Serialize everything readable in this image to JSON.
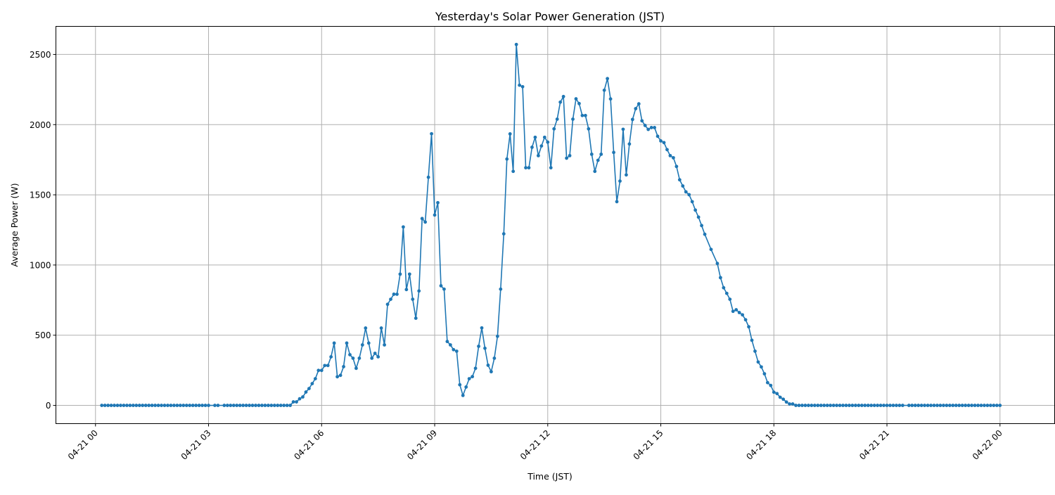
{
  "chart_data": {
    "type": "line",
    "title": "Yesterday's Solar Power Generation (JST)",
    "xlabel": "Time (JST)",
    "ylabel": "Average Power (W)",
    "xlim": [
      "04-20 22:57",
      "04-22 01:27"
    ],
    "ylim": [
      -130,
      2700
    ],
    "grid": true,
    "marker": "circle",
    "colors": {
      "series": "#1f77b4",
      "grid": "#b0b0b0",
      "frame": "#000000"
    },
    "x_ticks": [
      "04-21 00",
      "04-21 03",
      "04-21 06",
      "04-21 09",
      "04-21 12",
      "04-21 15",
      "04-21 18",
      "04-21 21",
      "04-22 00"
    ],
    "y_ticks": [
      0,
      500,
      1000,
      1500,
      2000,
      2500
    ],
    "y_tick_labels": [
      "0",
      "500",
      "1000",
      "1500",
      "2000",
      "2500"
    ],
    "series": [
      {
        "points": [
          [
            "04-21 00:10",
            0
          ],
          [
            "04-21 00:15",
            0
          ],
          [
            "04-21 00:20",
            0
          ],
          [
            "04-21 00:25",
            0
          ],
          [
            "04-21 00:30",
            0
          ],
          [
            "04-21 00:35",
            0
          ],
          [
            "04-21 00:40",
            0
          ],
          [
            "04-21 00:45",
            0
          ],
          [
            "04-21 00:50",
            0
          ],
          [
            "04-21 00:55",
            0
          ],
          [
            "04-21 01:00",
            0
          ],
          [
            "04-21 01:05",
            0
          ],
          [
            "04-21 01:10",
            0
          ],
          [
            "04-21 01:15",
            0
          ],
          [
            "04-21 01:20",
            0
          ],
          [
            "04-21 01:25",
            0
          ],
          [
            "04-21 01:30",
            0
          ],
          [
            "04-21 01:35",
            0
          ],
          [
            "04-21 01:40",
            0
          ],
          [
            "04-21 01:45",
            0
          ],
          [
            "04-21 01:50",
            0
          ],
          [
            "04-21 01:55",
            0
          ],
          [
            "04-21 02:00",
            0
          ],
          [
            "04-21 02:05",
            0
          ],
          [
            "04-21 02:10",
            0
          ],
          [
            "04-21 02:15",
            0
          ],
          [
            "04-21 02:20",
            0
          ],
          [
            "04-21 02:25",
            0
          ],
          [
            "04-21 02:30",
            0
          ],
          [
            "04-21 02:35",
            0
          ],
          [
            "04-21 02:40",
            0
          ],
          [
            "04-21 02:45",
            0
          ],
          [
            "04-21 02:50",
            0
          ],
          [
            "04-21 02:55",
            0
          ],
          [
            "04-21 03:00",
            0
          ],
          [
            "04-21 03:10",
            0
          ],
          [
            "04-21 03:15",
            0
          ],
          [
            "04-21 03:25",
            0
          ],
          [
            "04-21 03:30",
            0
          ],
          [
            "04-21 03:35",
            0
          ],
          [
            "04-21 03:40",
            0
          ],
          [
            "04-21 03:45",
            0
          ],
          [
            "04-21 03:50",
            0
          ],
          [
            "04-21 03:55",
            0
          ],
          [
            "04-21 04:00",
            0
          ],
          [
            "04-21 04:05",
            0
          ],
          [
            "04-21 04:10",
            0
          ],
          [
            "04-21 04:15",
            0
          ],
          [
            "04-21 04:20",
            0
          ],
          [
            "04-21 04:25",
            0
          ],
          [
            "04-21 04:30",
            0
          ],
          [
            "04-21 04:35",
            0
          ],
          [
            "04-21 04:40",
            0
          ],
          [
            "04-21 04:45",
            0
          ],
          [
            "04-21 04:50",
            0
          ],
          [
            "04-21 04:55",
            0
          ],
          [
            "04-21 05:00",
            0
          ],
          [
            "04-21 05:05",
            0
          ],
          [
            "04-21 05:10",
            0
          ],
          [
            "04-21 05:15",
            25
          ],
          [
            "04-21 05:20",
            25
          ],
          [
            "04-21 05:25",
            47
          ],
          [
            "04-21 05:30",
            60
          ],
          [
            "04-21 05:35",
            95
          ],
          [
            "04-21 05:40",
            120
          ],
          [
            "04-21 05:45",
            155
          ],
          [
            "04-21 05:50",
            190
          ],
          [
            "04-21 05:55",
            249
          ],
          [
            "04-21 06:00",
            249
          ],
          [
            "04-21 06:05",
            284
          ],
          [
            "04-21 06:10",
            284
          ],
          [
            "04-21 06:15",
            346
          ],
          [
            "04-21 06:20",
            444
          ],
          [
            "04-21 06:25",
            204
          ],
          [
            "04-21 06:30",
            214
          ],
          [
            "04-21 06:35",
            276
          ],
          [
            "04-21 06:40",
            444
          ],
          [
            "04-21 06:45",
            361
          ],
          [
            "04-21 06:50",
            336
          ],
          [
            "04-21 06:55",
            264
          ],
          [
            "04-21 07:00",
            336
          ],
          [
            "04-21 07:05",
            431
          ],
          [
            "04-21 07:10",
            551
          ],
          [
            "04-21 07:15",
            444
          ],
          [
            "04-21 07:20",
            336
          ],
          [
            "04-21 07:25",
            371
          ],
          [
            "04-21 07:30",
            346
          ],
          [
            "04-21 07:35",
            551
          ],
          [
            "04-21 07:40",
            431
          ],
          [
            "04-21 07:45",
            720
          ],
          [
            "04-21 07:50",
            756
          ],
          [
            "04-21 07:55",
            792
          ],
          [
            "04-21 08:00",
            792
          ],
          [
            "04-21 08:05",
            935
          ],
          [
            "04-21 08:10",
            1271
          ],
          [
            "04-21 08:15",
            825
          ],
          [
            "04-21 08:20",
            935
          ],
          [
            "04-21 08:25",
            756
          ],
          [
            "04-21 08:30",
            621
          ],
          [
            "04-21 08:35",
            815
          ],
          [
            "04-21 08:40",
            1331
          ],
          [
            "04-21 08:45",
            1306
          ],
          [
            "04-21 08:50",
            1625
          ],
          [
            "04-21 08:55",
            1935
          ],
          [
            "04-21 09:00",
            1356
          ],
          [
            "04-21 09:05",
            1444
          ],
          [
            "04-21 09:10",
            852
          ],
          [
            "04-21 09:15",
            828
          ],
          [
            "04-21 09:20",
            455
          ],
          [
            "04-21 09:25",
            431
          ],
          [
            "04-21 09:30",
            397
          ],
          [
            "04-21 09:35",
            386
          ],
          [
            "04-21 09:40",
            147
          ],
          [
            "04-21 09:45",
            71
          ],
          [
            "04-21 09:50",
            131
          ],
          [
            "04-21 09:55",
            190
          ],
          [
            "04-21 10:00",
            205
          ],
          [
            "04-21 10:05",
            264
          ],
          [
            "04-21 10:10",
            421
          ],
          [
            "04-21 10:15",
            552
          ],
          [
            "04-21 10:20",
            407
          ],
          [
            "04-21 10:25",
            286
          ],
          [
            "04-21 10:30",
            240
          ],
          [
            "04-21 10:35",
            336
          ],
          [
            "04-21 10:40",
            492
          ],
          [
            "04-21 10:45",
            828
          ],
          [
            "04-21 10:50",
            1222
          ],
          [
            "04-21 10:55",
            1755
          ],
          [
            "04-21 11:00",
            1934
          ],
          [
            "04-21 11:05",
            1667
          ],
          [
            "04-21 11:10",
            2571
          ],
          [
            "04-21 11:15",
            2281
          ],
          [
            "04-21 11:20",
            2270
          ],
          [
            "04-21 11:25",
            1693
          ],
          [
            "04-21 11:30",
            1693
          ],
          [
            "04-21 11:35",
            1839
          ],
          [
            "04-21 11:40",
            1910
          ],
          [
            "04-21 11:45",
            1779
          ],
          [
            "04-21 11:50",
            1848
          ],
          [
            "04-21 11:55",
            1910
          ],
          [
            "04-21 12:00",
            1875
          ],
          [
            "04-21 12:05",
            1693
          ],
          [
            "04-21 12:10",
            1970
          ],
          [
            "04-21 12:15",
            2039
          ],
          [
            "04-21 12:20",
            2160
          ],
          [
            "04-21 12:25",
            2200
          ],
          [
            "04-21 12:30",
            1761
          ],
          [
            "04-21 12:35",
            1779
          ],
          [
            "04-21 12:40",
            2039
          ],
          [
            "04-21 12:45",
            2184
          ],
          [
            "04-21 12:50",
            2150
          ],
          [
            "04-21 12:55",
            2065
          ],
          [
            "04-21 13:00",
            2065
          ],
          [
            "04-21 13:05",
            1970
          ],
          [
            "04-21 13:10",
            1789
          ],
          [
            "04-21 13:15",
            1667
          ],
          [
            "04-21 13:20",
            1746
          ],
          [
            "04-21 13:25",
            1789
          ],
          [
            "04-21 13:30",
            2245
          ],
          [
            "04-21 13:35",
            2328
          ],
          [
            "04-21 13:40",
            2183
          ],
          [
            "04-21 13:45",
            1802
          ],
          [
            "04-21 13:50",
            1451
          ],
          [
            "04-21 13:55",
            1598
          ],
          [
            "04-21 14:00",
            1967
          ],
          [
            "04-21 14:05",
            1642
          ],
          [
            "04-21 14:10",
            1862
          ],
          [
            "04-21 14:15",
            2037
          ],
          [
            "04-21 14:20",
            2114
          ],
          [
            "04-21 14:25",
            2148
          ],
          [
            "04-21 14:30",
            2027
          ],
          [
            "04-21 14:35",
            1994
          ],
          [
            "04-21 14:40",
            1966
          ],
          [
            "04-21 14:45",
            1979
          ],
          [
            "04-21 14:50",
            1979
          ],
          [
            "04-21 14:55",
            1917
          ],
          [
            "04-21 15:00",
            1884
          ],
          [
            "04-21 15:05",
            1872
          ],
          [
            "04-21 15:10",
            1822
          ],
          [
            "04-21 15:15",
            1779
          ],
          [
            "04-21 15:20",
            1764
          ],
          [
            "04-21 15:25",
            1702
          ],
          [
            "04-21 15:30",
            1607
          ],
          [
            "04-21 15:35",
            1563
          ],
          [
            "04-21 15:40",
            1521
          ],
          [
            "04-21 15:45",
            1501
          ],
          [
            "04-21 15:50",
            1451
          ],
          [
            "04-21 15:55",
            1391
          ],
          [
            "04-21 16:00",
            1341
          ],
          [
            "04-21 16:05",
            1281
          ],
          [
            "04-21 16:10",
            1219
          ],
          [
            "04-21 16:20",
            1111
          ],
          [
            "04-21 16:30",
            1011
          ],
          [
            "04-21 16:35",
            910
          ],
          [
            "04-21 16:40",
            838
          ],
          [
            "04-21 16:45",
            798
          ],
          [
            "04-21 16:50",
            756
          ],
          [
            "04-21 16:55",
            670
          ],
          [
            "04-21 17:00",
            681
          ],
          [
            "04-21 17:05",
            661
          ],
          [
            "04-21 17:10",
            645
          ],
          [
            "04-21 17:15",
            610
          ],
          [
            "04-21 17:20",
            560
          ],
          [
            "04-21 17:25",
            464
          ],
          [
            "04-21 17:30",
            386
          ],
          [
            "04-21 17:35",
            309
          ],
          [
            "04-21 17:40",
            274
          ],
          [
            "04-21 17:45",
            225
          ],
          [
            "04-21 17:50",
            162
          ],
          [
            "04-21 17:55",
            142
          ],
          [
            "04-21 18:00",
            94
          ],
          [
            "04-21 18:05",
            84
          ],
          [
            "04-21 18:10",
            58
          ],
          [
            "04-21 18:15",
            44
          ],
          [
            "04-21 18:20",
            24
          ],
          [
            "04-21 18:25",
            10
          ],
          [
            "04-21 18:30",
            10
          ],
          [
            "04-21 18:35",
            0
          ],
          [
            "04-21 18:40",
            0
          ],
          [
            "04-21 18:45",
            0
          ],
          [
            "04-21 18:50",
            0
          ],
          [
            "04-21 18:55",
            0
          ],
          [
            "04-21 19:00",
            0
          ],
          [
            "04-21 19:05",
            0
          ],
          [
            "04-21 19:10",
            0
          ],
          [
            "04-21 19:15",
            0
          ],
          [
            "04-21 19:20",
            0
          ],
          [
            "04-21 19:25",
            0
          ],
          [
            "04-21 19:30",
            0
          ],
          [
            "04-21 19:35",
            0
          ],
          [
            "04-21 19:40",
            0
          ],
          [
            "04-21 19:45",
            0
          ],
          [
            "04-21 19:50",
            0
          ],
          [
            "04-21 19:55",
            0
          ],
          [
            "04-21 20:00",
            0
          ],
          [
            "04-21 20:05",
            0
          ],
          [
            "04-21 20:10",
            0
          ],
          [
            "04-21 20:15",
            0
          ],
          [
            "04-21 20:20",
            0
          ],
          [
            "04-21 20:25",
            0
          ],
          [
            "04-21 20:30",
            0
          ],
          [
            "04-21 20:35",
            0
          ],
          [
            "04-21 20:40",
            0
          ],
          [
            "04-21 20:45",
            0
          ],
          [
            "04-21 20:50",
            0
          ],
          [
            "04-21 20:55",
            0
          ],
          [
            "04-21 21:00",
            0
          ],
          [
            "04-21 21:05",
            0
          ],
          [
            "04-21 21:10",
            0
          ],
          [
            "04-21 21:15",
            0
          ],
          [
            "04-21 21:20",
            0
          ],
          [
            "04-21 21:25",
            0
          ],
          [
            "04-21 21:35",
            0
          ],
          [
            "04-21 21:40",
            0
          ],
          [
            "04-21 21:45",
            0
          ],
          [
            "04-21 21:50",
            0
          ],
          [
            "04-21 21:55",
            0
          ],
          [
            "04-21 22:00",
            0
          ],
          [
            "04-21 22:05",
            0
          ],
          [
            "04-21 22:10",
            0
          ],
          [
            "04-21 22:15",
            0
          ],
          [
            "04-21 22:20",
            0
          ],
          [
            "04-21 22:25",
            0
          ],
          [
            "04-21 22:30",
            0
          ],
          [
            "04-21 22:35",
            0
          ],
          [
            "04-21 22:40",
            0
          ],
          [
            "04-21 22:45",
            0
          ],
          [
            "04-21 22:50",
            0
          ],
          [
            "04-21 22:55",
            0
          ],
          [
            "04-21 23:00",
            0
          ],
          [
            "04-21 23:05",
            0
          ],
          [
            "04-21 23:10",
            0
          ],
          [
            "04-21 23:15",
            0
          ],
          [
            "04-21 23:20",
            0
          ],
          [
            "04-21 23:25",
            0
          ],
          [
            "04-21 23:30",
            0
          ],
          [
            "04-21 23:35",
            0
          ],
          [
            "04-21 23:40",
            0
          ],
          [
            "04-21 23:45",
            0
          ],
          [
            "04-21 23:50",
            0
          ],
          [
            "04-21 23:55",
            0
          ],
          [
            "04-22 00:00",
            0
          ]
        ]
      }
    ]
  }
}
